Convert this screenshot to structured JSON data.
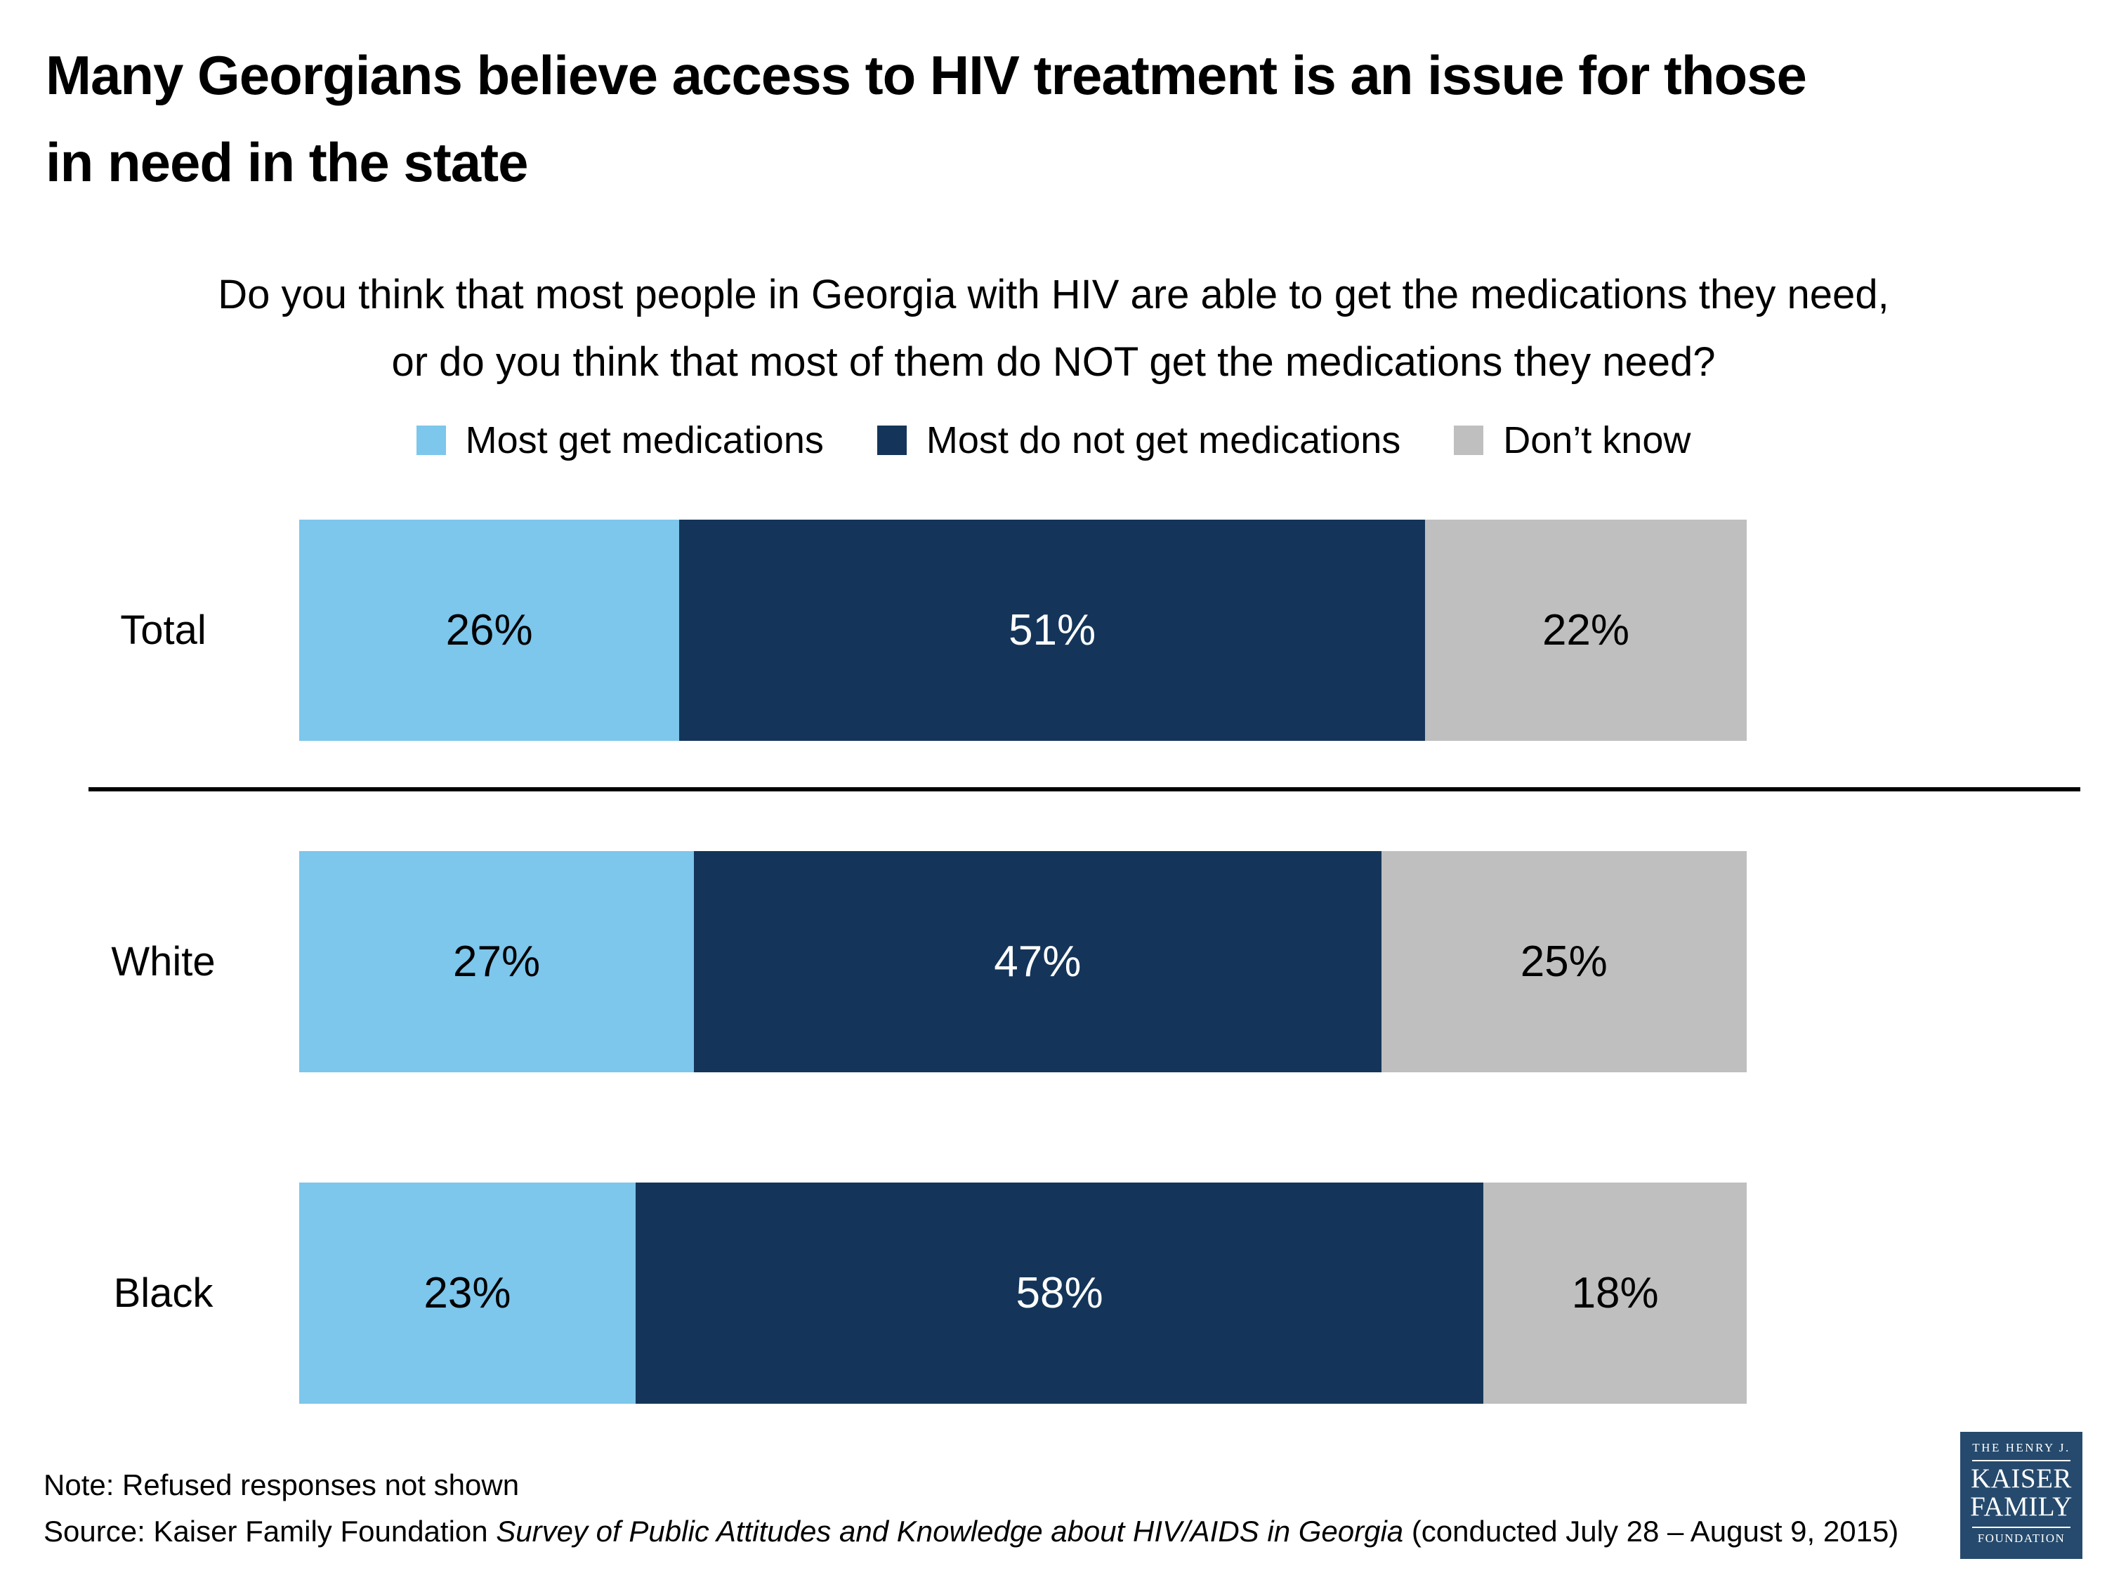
{
  "title": {
    "lines": [
      "Many Georgians believe access to HIV treatment is an issue for those",
      "in need in the state"
    ]
  },
  "question": {
    "lines": [
      "Do you think that most people in Georgia with HIV are able to get the medications they need,",
      "or do you think that most of them do NOT get the medications they need?"
    ]
  },
  "chart_data": {
    "type": "bar",
    "orientation": "horizontal_stacked",
    "legend_position": "top",
    "axis_labels_shown": false,
    "value_suffix": "%",
    "categories": [
      "Total",
      "White",
      "Black"
    ],
    "series": [
      {
        "key": "most-get-medications",
        "name": "Most get medications",
        "color": "#7DC6EC",
        "label_color": "#000000",
        "values": [
          26,
          27,
          23
        ]
      },
      {
        "key": "most-do-not-get-medications",
        "name": "Most do not get medications",
        "color": "#143559",
        "label_color": "#FFFFFF",
        "values": [
          51,
          47,
          58
        ]
      },
      {
        "key": "dont-know",
        "name": "Don’t know",
        "color": "#BFBFBF",
        "label_color": "#000000",
        "values": [
          22,
          25,
          18
        ]
      }
    ]
  },
  "footer": {
    "note": "Note: Refused responses not shown",
    "source_prefix": "Source: Kaiser Family Foundation ",
    "source_italic": "Survey of Public Attitudes and Knowledge about HIV/AIDS in Georgia",
    "source_suffix": " (conducted July 28 – August 9, 2015)"
  },
  "logo": {
    "bg_color": "#254A6D",
    "line1": "THE HENRY J.",
    "line2": "KAISER",
    "line3": "FAMILY",
    "line4": "FOUNDATION"
  }
}
